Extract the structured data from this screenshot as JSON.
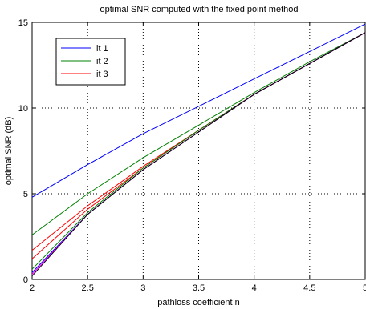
{
  "chart_data": {
    "type": "line",
    "title": "optimal SNR computed with the fixed point method",
    "xlabel": "pathloss coefficient n",
    "ylabel": "optimal SNR (dB)",
    "xlim": [
      2,
      5
    ],
    "ylim": [
      0,
      15
    ],
    "xticks": [
      2,
      2.5,
      3,
      3.5,
      4,
      4.5,
      5
    ],
    "xtick_labels": [
      "2",
      "2.5",
      "3",
      "3.5",
      "4",
      "4.5",
      "5"
    ],
    "yticks": [
      0,
      5,
      10,
      15
    ],
    "ytick_labels": [
      "0",
      "5",
      "10",
      "15"
    ],
    "grid": true,
    "legend_position": "top-left",
    "series": [
      {
        "name": "it 1",
        "color": "#0000ff",
        "x": [
          2,
          2.5,
          3,
          3.5,
          4,
          4.5,
          5
        ],
        "y": [
          4.8,
          6.7,
          8.5,
          10.1,
          11.7,
          13.3,
          14.9
        ]
      },
      {
        "name": "it 2",
        "color": "#008000",
        "x": [
          2,
          2.5,
          3,
          3.5,
          4,
          4.5,
          5
        ],
        "y": [
          2.6,
          5.0,
          7.1,
          9.0,
          10.9,
          12.7,
          14.4
        ]
      },
      {
        "name": "it 3",
        "color": "#ff0000",
        "x": [
          2,
          2.5,
          3,
          3.5,
          4,
          4.5,
          5
        ],
        "y": [
          1.7,
          4.3,
          6.6,
          8.7,
          10.8,
          12.6,
          14.4
        ]
      },
      {
        "name": "",
        "color": "#ff0000",
        "x": [
          2,
          2.5,
          3,
          3.5,
          4,
          4.5,
          5
        ],
        "y": [
          1.2,
          4.1,
          6.5,
          8.7,
          10.8,
          12.6,
          14.4
        ]
      },
      {
        "name": "",
        "color": "#008000",
        "x": [
          2,
          2.5,
          3,
          3.5,
          4,
          4.5,
          5
        ],
        "y": [
          0.6,
          3.9,
          6.5,
          8.7,
          10.8,
          12.6,
          14.4
        ]
      },
      {
        "name": "",
        "color": "#0000ff",
        "x": [
          2,
          2.5,
          3,
          3.5,
          4,
          4.5,
          5
        ],
        "y": [
          0.4,
          3.8,
          6.4,
          8.6,
          10.8,
          12.6,
          14.4
        ]
      },
      {
        "name": "",
        "color": "#ff00ff",
        "x": [
          2,
          2.5,
          3,
          3.5,
          4,
          4.5,
          5
        ],
        "y": [
          0.3,
          3.8,
          6.4,
          8.6,
          10.8,
          12.6,
          14.4
        ]
      },
      {
        "name": "",
        "color": "#000000",
        "x": [
          2,
          2.5,
          3,
          3.5,
          4,
          4.5,
          5
        ],
        "y": [
          0.2,
          3.8,
          6.4,
          8.6,
          10.8,
          12.6,
          14.4
        ]
      }
    ]
  }
}
